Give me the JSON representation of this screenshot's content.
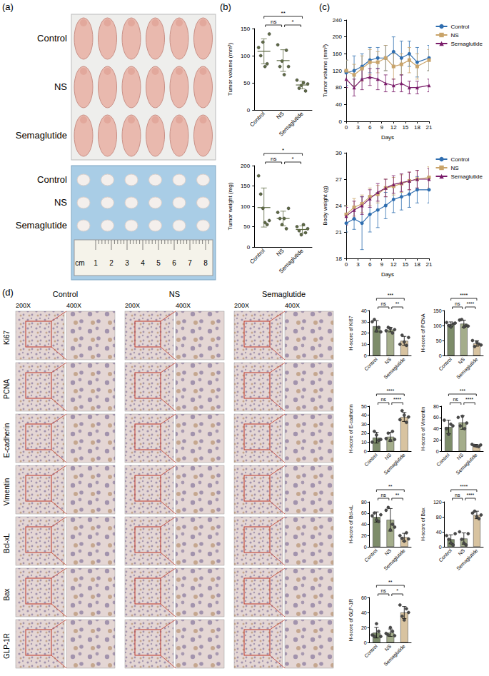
{
  "figure": {
    "panel_labels": [
      "(a)",
      "(b)",
      "(c)",
      "(d)"
    ],
    "mice_photo": {
      "rows": [
        "Control",
        "NS",
        "Semaglutide"
      ]
    },
    "tumor_photo": {
      "rows": [
        "Control",
        "NS",
        "Semaglutide"
      ],
      "ruler_labels": [
        "cm",
        "1",
        "2",
        "3",
        "4",
        "5",
        "6",
        "7",
        "8"
      ]
    },
    "ihc": {
      "groups": [
        "Control",
        "NS",
        "Semaglutide"
      ],
      "magnifications": [
        "200X",
        "400X"
      ],
      "stains": [
        "Ki67",
        "PCNA",
        "E-cadherin",
        "Vimentin",
        "Bcl-xL",
        "Bax",
        "GLP-1R"
      ]
    }
  },
  "chart_data": [
    {
      "type": "scatter",
      "ylabel": "Tumor volume (mm³)",
      "categories": [
        "Control",
        "NS",
        "Semaglutide"
      ],
      "points": [
        [
          115,
          100,
          125,
          80,
          85,
          140
        ],
        [
          120,
          80,
          90,
          65,
          110,
          80
        ],
        [
          55,
          40,
          45,
          50,
          35,
          48
        ]
      ],
      "means": [
        108,
        91,
        46
      ],
      "errors": [
        23,
        20,
        7
      ],
      "color": "#5f6b45",
      "ylim": [
        0,
        150
      ],
      "yticks": [
        0,
        50,
        100,
        150
      ],
      "comparisons": [
        {
          "groups": [
            "Control",
            "NS"
          ],
          "label": "ns"
        },
        {
          "groups": [
            "NS",
            "Semaglutide"
          ],
          "label": "*"
        },
        {
          "groups": [
            "Control",
            "Semaglutide"
          ],
          "label": "**"
        }
      ]
    },
    {
      "type": "scatter",
      "ylabel": "Tumor weight (mg)",
      "categories": [
        "Control",
        "NS",
        "Semaglutide"
      ],
      "points": [
        [
          175,
          130,
          95,
          60,
          55,
          65
        ],
        [
          85,
          70,
          55,
          70,
          45,
          95
        ],
        [
          50,
          40,
          30,
          55,
          35,
          45
        ]
      ],
      "means": [
        97,
        70,
        43
      ],
      "errors": [
        48,
        18,
        9
      ],
      "color": "#5f6b45",
      "ylim": [
        0,
        200
      ],
      "yticks": [
        0,
        50,
        100,
        150,
        200
      ],
      "comparisons": [
        {
          "groups": [
            "Control",
            "NS"
          ],
          "label": "ns"
        },
        {
          "groups": [
            "NS",
            "Semaglutide"
          ],
          "label": "*"
        },
        {
          "groups": [
            "Control",
            "Semaglutide"
          ],
          "label": "*"
        }
      ]
    },
    {
      "type": "line",
      "xlabel": "Days",
      "ylabel": "Tumor volume (mm³)",
      "legend": "right",
      "x": [
        0,
        2,
        4,
        6,
        8,
        10,
        12,
        14,
        16,
        18,
        21
      ],
      "xlim": [
        0,
        21
      ],
      "xticks": [
        0,
        3,
        6,
        9,
        12,
        15,
        18,
        21
      ],
      "ylim": [
        0,
        240
      ],
      "yticks": [
        0,
        40,
        80,
        120,
        160,
        200,
        240
      ],
      "series": [
        {
          "name": "Control",
          "color": "#2f6eb0",
          "marker": "circle",
          "values": [
            115,
            120,
            130,
            145,
            150,
            150,
            165,
            150,
            160,
            140,
            150
          ],
          "errors": [
            30,
            35,
            30,
            30,
            25,
            30,
            35,
            40,
            30,
            35,
            30
          ]
        },
        {
          "name": "NS",
          "color": "#c9a46a",
          "marker": "square",
          "values": [
            120,
            110,
            125,
            140,
            140,
            150,
            130,
            135,
            145,
            130,
            145
          ],
          "errors": [
            25,
            25,
            30,
            30,
            25,
            30,
            30,
            25,
            30,
            30,
            25
          ]
        },
        {
          "name": "Semaglutide",
          "color": "#7a1c6a",
          "marker": "triangle",
          "values": [
            100,
            80,
            100,
            105,
            100,
            90,
            85,
            90,
            80,
            80,
            85
          ],
          "errors": [
            20,
            20,
            25,
            20,
            25,
            20,
            15,
            20,
            15,
            15,
            15
          ]
        }
      ]
    },
    {
      "type": "line",
      "xlabel": "Days",
      "ylabel": "Body weight (g)",
      "legend": "right",
      "x": [
        0,
        2,
        4,
        6,
        8,
        10,
        12,
        14,
        16,
        18,
        21
      ],
      "xlim": [
        0,
        21
      ],
      "xticks": [
        0,
        3,
        6,
        9,
        12,
        15,
        18,
        21
      ],
      "ylim": [
        18,
        30
      ],
      "yticks": [
        18,
        21,
        24,
        27,
        30
      ],
      "series": [
        {
          "name": "Control",
          "color": "#2f6eb0",
          "marker": "circle",
          "values": [
            22,
            22.5,
            22,
            23,
            23.5,
            24,
            24.7,
            25,
            25.3,
            25.8,
            25.8
          ],
          "errors": [
            1,
            1.2,
            3,
            2,
            2,
            1.5,
            1.5,
            1.5,
            1.5,
            1.5,
            1.5
          ]
        },
        {
          "name": "NS",
          "color": "#c9a46a",
          "marker": "square",
          "values": [
            23,
            23.8,
            24.2,
            25,
            25.3,
            26,
            26.2,
            26.5,
            26.8,
            27,
            27.2
          ],
          "errors": [
            1,
            1,
            1,
            1,
            1,
            1,
            1,
            1,
            1,
            1,
            1.2
          ]
        },
        {
          "name": "Semaglutide",
          "color": "#7a1c6a",
          "marker": "triangle",
          "values": [
            22.8,
            23.5,
            24,
            24.8,
            25.5,
            26,
            26.4,
            26.6,
            26.8,
            27,
            27
          ],
          "errors": [
            1,
            1,
            1,
            1,
            1,
            1,
            1,
            1,
            1,
            1,
            1.2
          ]
        }
      ]
    },
    {
      "type": "bar",
      "ylabel": "H-score of Ki67",
      "categories": [
        "Control",
        "NS",
        "Semaglutide"
      ],
      "values": [
        26,
        23,
        13
      ],
      "errors": [
        5,
        2,
        4
      ],
      "points": [
        [
          30,
          32,
          22,
          25,
          21
        ],
        [
          22,
          25,
          24,
          20,
          23
        ],
        [
          10,
          18,
          12,
          9,
          16
        ]
      ],
      "colors": [
        "#7d8c6a",
        "#a4ad8b",
        "#d8c3a0"
      ],
      "ylim": [
        0,
        40
      ],
      "yticks": [
        0,
        10,
        20,
        30,
        40
      ],
      "comparisons": [
        {
          "groups": [
            "Control",
            "NS"
          ],
          "label": "ns"
        },
        {
          "groups": [
            "NS",
            "Semaglutide"
          ],
          "label": "**"
        },
        {
          "groups": [
            "Control",
            "Semaglutide"
          ],
          "label": "***"
        }
      ]
    },
    {
      "type": "bar",
      "ylabel": "H-score of PCNA",
      "categories": [
        "Control",
        "NS",
        "Semaglutide"
      ],
      "values": [
        104,
        106,
        40
      ],
      "errors": [
        8,
        12,
        9
      ],
      "points": [
        [
          110,
          100,
          95,
          105,
          108
        ],
        [
          118,
          120,
          95,
          100,
          98
        ],
        [
          50,
          30,
          45,
          38,
          35
        ]
      ],
      "colors": [
        "#7d8c6a",
        "#a4ad8b",
        "#d8c3a0"
      ],
      "ylim": [
        0,
        150
      ],
      "yticks": [
        0,
        50,
        100,
        150
      ],
      "comparisons": [
        {
          "groups": [
            "Control",
            "NS"
          ],
          "label": "ns"
        },
        {
          "groups": [
            "NS",
            "Semaglutide"
          ],
          "label": "****"
        },
        {
          "groups": [
            "Control",
            "Semaglutide"
          ],
          "label": "****"
        }
      ]
    },
    {
      "type": "bar",
      "ylabel": "H-score of E-cadherin",
      "categories": [
        "Control",
        "NS",
        "Semaglutide"
      ],
      "values": [
        15,
        16,
        38
      ],
      "errors": [
        6,
        5,
        5
      ],
      "points": [
        [
          10,
          22,
          18,
          12,
          13
        ],
        [
          14,
          20,
          12,
          22,
          13
        ],
        [
          35,
          45,
          40,
          32,
          38
        ]
      ],
      "colors": [
        "#7d8c6a",
        "#a4ad8b",
        "#d8c3a0"
      ],
      "ylim": [
        0,
        50
      ],
      "yticks": [
        0,
        10,
        20,
        30,
        40,
        50
      ],
      "comparisons": [
        {
          "groups": [
            "Control",
            "NS"
          ],
          "label": "ns"
        },
        {
          "groups": [
            "NS",
            "Semaglutide"
          ],
          "label": "****"
        },
        {
          "groups": [
            "Control",
            "Semaglutide"
          ],
          "label": "****"
        }
      ]
    },
    {
      "type": "bar",
      "ylabel": "H-score of Vimentin",
      "categories": [
        "Control",
        "NS",
        "Semaglutide"
      ],
      "values": [
        43,
        51,
        10
      ],
      "errors": [
        12,
        12,
        2
      ],
      "points": [
        [
          55,
          40,
          30,
          48,
          45
        ],
        [
          60,
          45,
          62,
          40,
          50
        ],
        [
          12,
          10,
          9,
          8,
          11
        ]
      ],
      "colors": [
        "#7d8c6a",
        "#a4ad8b",
        "#d8c3a0"
      ],
      "ylim": [
        0,
        80
      ],
      "yticks": [
        0,
        20,
        40,
        60,
        80
      ],
      "comparisons": [
        {
          "groups": [
            "Control",
            "NS"
          ],
          "label": "ns"
        },
        {
          "groups": [
            "NS",
            "Semaglutide"
          ],
          "label": "****"
        },
        {
          "groups": [
            "Control",
            "Semaglutide"
          ],
          "label": "***"
        }
      ]
    },
    {
      "type": "bar",
      "ylabel": "H-score of Bcl-xL",
      "categories": [
        "Control",
        "NS",
        "Semaglutide"
      ],
      "values": [
        53,
        48,
        17
      ],
      "errors": [
        9,
        20,
        7
      ],
      "points": [
        [
          55,
          60,
          48,
          45,
          57
        ],
        [
          65,
          70,
          30,
          40,
          35
        ],
        [
          20,
          15,
          10,
          25,
          14
        ]
      ],
      "colors": [
        "#7d8c6a",
        "#a4ad8b",
        "#d8c3a0"
      ],
      "ylim": [
        0,
        80
      ],
      "yticks": [
        0,
        20,
        40,
        60,
        80
      ],
      "comparisons": [
        {
          "groups": [
            "Control",
            "NS"
          ],
          "label": "ns"
        },
        {
          "groups": [
            "NS",
            "Semaglutide"
          ],
          "label": "**"
        },
        {
          "groups": [
            "Control",
            "Semaglutide"
          ],
          "label": "**"
        }
      ]
    },
    {
      "type": "bar",
      "ylabel": "H-score of Bax",
      "categories": [
        "Control",
        "NS",
        "Semaglutide"
      ],
      "values": [
        20,
        22,
        85
      ],
      "errors": [
        12,
        15,
        10
      ],
      "points": [
        [
          30,
          20,
          10,
          5,
          35
        ],
        [
          40,
          20,
          10,
          5,
          35
        ],
        [
          90,
          95,
          80,
          75,
          85
        ]
      ],
      "colors": [
        "#7d8c6a",
        "#a4ad8b",
        "#d8c3a0"
      ],
      "ylim": [
        0,
        120
      ],
      "yticks": [
        0,
        40,
        80,
        120
      ],
      "comparisons": [
        {
          "groups": [
            "Control",
            "NS"
          ],
          "label": "ns"
        },
        {
          "groups": [
            "NS",
            "Semaglutide"
          ],
          "label": "****"
        },
        {
          "groups": [
            "Control",
            "Semaglutide"
          ],
          "label": "****"
        }
      ]
    },
    {
      "type": "bar",
      "ylabel": "H-score of GLP-1R",
      "categories": [
        "Control",
        "NS",
        "Semaglutide"
      ],
      "values": [
        13,
        13,
        40
      ],
      "errors": [
        7,
        5,
        8
      ],
      "points": [
        [
          10,
          8,
          25,
          15,
          8
        ],
        [
          12,
          10,
          20,
          15,
          9
        ],
        [
          50,
          35,
          30,
          45,
          40
        ]
      ],
      "colors": [
        "#7d8c6a",
        "#a4ad8b",
        "#d8c3a0"
      ],
      "ylim": [
        0,
        60
      ],
      "yticks": [
        0,
        20,
        40,
        60
      ],
      "comparisons": [
        {
          "groups": [
            "Control",
            "NS"
          ],
          "label": "ns"
        },
        {
          "groups": [
            "NS",
            "Semaglutide"
          ],
          "label": "*"
        },
        {
          "groups": [
            "Control",
            "Semaglutide"
          ],
          "label": "**"
        }
      ]
    }
  ]
}
